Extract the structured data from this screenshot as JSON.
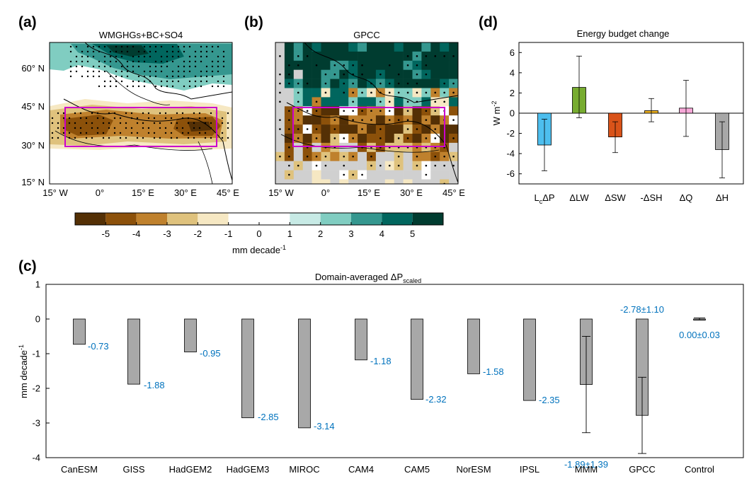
{
  "panel_labels": {
    "a": "(a)",
    "b": "(b)",
    "c": "(c)",
    "d": "(d)"
  },
  "colorbar": {
    "ticks": [
      "-5",
      "-4",
      "-3",
      "-2",
      "-1",
      "0",
      "1",
      "2",
      "3",
      "4",
      "5"
    ],
    "unit_main": "mm decade",
    "unit_sup": "-1",
    "colors": [
      "#543005",
      "#8c510a",
      "#bf812d",
      "#dfc27d",
      "#f6e8c3",
      "#ffffff",
      "#ffffff",
      "#c7eae5",
      "#80cdc1",
      "#35978f",
      "#01665e",
      "#003c30"
    ]
  },
  "chart_data": [
    {
      "type": "heatmap",
      "panel": "a",
      "title": "WMGHGs+BC+SO4",
      "x_ticks": [
        "15° W",
        "0°",
        "15° E",
        "30° E",
        "45° E"
      ],
      "y_ticks": [
        "15° N",
        "30° N",
        "45° N",
        "60° N"
      ],
      "xlim": [
        -15,
        45
      ],
      "ylim": [
        12,
        72
      ],
      "domain_box": {
        "lon": [
          -7,
          40
        ],
        "lat": [
          30,
          45
        ]
      },
      "value_range": [
        -5,
        5
      ]
    },
    {
      "type": "heatmap",
      "panel": "b",
      "title": "GPCC",
      "x_ticks": [
        "15° W",
        "0°",
        "15° E",
        "30° E",
        "45° E"
      ],
      "xlim": [
        -15,
        45
      ],
      "ylim": [
        12,
        72
      ],
      "domain_box": {
        "lon": [
          -7,
          40
        ],
        "lat": [
          30,
          45
        ]
      },
      "value_range": [
        -5,
        5
      ]
    },
    {
      "type": "bar",
      "panel": "c",
      "title_main": "Domain-averaged ΔP",
      "title_sub": "scaled",
      "ylabel_main": "mm decade",
      "ylabel_sup": "-1",
      "ylim": [
        -4,
        1
      ],
      "yticks": [
        "-4",
        "-3",
        "-2",
        "-1",
        "0",
        "1"
      ],
      "categories": [
        "CanESM",
        "GISS",
        "HadGEM2",
        "HadGEM3",
        "MIROC",
        "CAM4",
        "CAM5",
        "NorESM",
        "IPSL",
        "MMM",
        "GPCC",
        "Control"
      ],
      "values": [
        -0.73,
        -1.88,
        -0.95,
        -2.85,
        -3.14,
        -1.18,
        -2.32,
        -1.58,
        -2.35,
        -1.89,
        -2.78,
        0.0
      ],
      "labels": [
        "-0.73",
        "-1.88",
        "-0.95",
        "-2.85",
        "-3.14",
        "-1.18",
        "-2.32",
        "-1.58",
        "-2.35",
        "-1.89±1.39",
        "-2.78±1.10",
        "0.00±0.03"
      ],
      "errors": [
        null,
        null,
        null,
        null,
        null,
        null,
        null,
        null,
        null,
        1.39,
        1.1,
        0.03
      ],
      "bar_color": "#a8a8a8",
      "label_color": "#0072BD"
    },
    {
      "type": "bar",
      "panel": "d",
      "title": "Energy budget change",
      "ylabel_main": "W m",
      "ylabel_sup": "-2",
      "ylim": [
        -7,
        7
      ],
      "yticks": [
        "-6",
        "-4",
        "-2",
        "0",
        "2",
        "4",
        "6"
      ],
      "categories": [
        "LcΔP",
        "ΔLW",
        "ΔSW",
        "-ΔSH",
        "ΔQ",
        "ΔH"
      ],
      "values": [
        -3.15,
        2.55,
        -2.35,
        0.25,
        0.5,
        -3.6
      ],
      "error_low": [
        -5.7,
        -0.45,
        -3.9,
        -0.85,
        -2.3,
        -6.4
      ],
      "error_high": [
        -0.6,
        5.65,
        -0.85,
        1.45,
        3.25,
        -0.85
      ],
      "colors": [
        "#4DBEEE",
        "#77AC30",
        "#D95319",
        "#EDB120",
        "#F7A8D8",
        "#a8a8a8"
      ]
    }
  ]
}
